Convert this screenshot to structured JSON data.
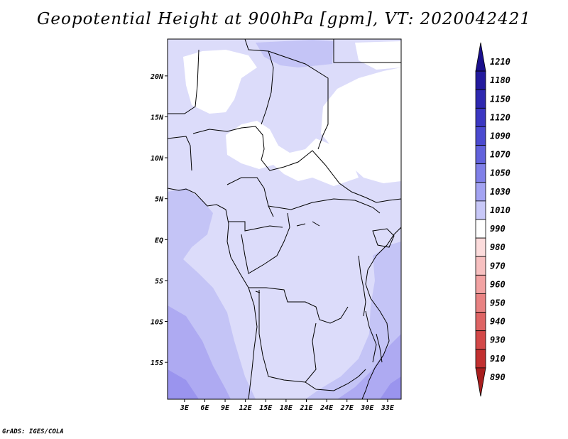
{
  "chart_data": {
    "type": "heatmap",
    "title": "Geopotential Height at 900hPa [gpm], VT: 2020042421",
    "variable": "Geopotential Height",
    "level": "900hPa",
    "units": "gpm",
    "valid_time": "2020042421",
    "x_ticks": [
      "3E",
      "6E",
      "9E",
      "12E",
      "15E",
      "18E",
      "21E",
      "24E",
      "27E",
      "30E",
      "33E"
    ],
    "x_tick_values": [
      3,
      6,
      9,
      12,
      15,
      18,
      21,
      24,
      27,
      30,
      33
    ],
    "y_ticks": [
      "20N",
      "15N",
      "10N",
      "5N",
      "EQ",
      "5S",
      "10S",
      "15S"
    ],
    "y_tick_values": [
      20,
      15,
      10,
      5,
      0,
      -5,
      -10,
      -15
    ],
    "lon_range": [
      0.5,
      35
    ],
    "lat_range": [
      -19.5,
      24.5
    ],
    "colorbar": {
      "orientation": "vertical",
      "levels": [
        1210,
        1180,
        1150,
        1120,
        1090,
        1070,
        1050,
        1030,
        1010,
        990,
        980,
        970,
        960,
        950,
        940,
        930,
        910,
        890
      ],
      "colors": [
        "#1a0f8c",
        "#231a9e",
        "#2e28b0",
        "#3b37c2",
        "#4b4ad0",
        "#6262dc",
        "#8080e8",
        "#a3a3f2",
        "#c8c8f8",
        "#ffffff",
        "#fcdcdc",
        "#f7c0c0",
        "#f2a2a2",
        "#e88282",
        "#de6464",
        "#d34848",
        "#c23030",
        "#a81e1e"
      ]
    },
    "regions": [
      {
        "name": "white",
        "value_range": [
          1010,
          1030
        ],
        "color": "#ffffff"
      },
      {
        "name": "pale-lavender",
        "value_range": [
          1030,
          1050
        ],
        "color": "#dcdcfa"
      },
      {
        "name": "light-lavender",
        "value_range": [
          1050,
          1070
        ],
        "color": "#c4c4f6"
      },
      {
        "name": "medium-lavender",
        "value_range": [
          1070,
          1090
        ],
        "color": "#aeaaf2"
      },
      {
        "name": "deep-lavender",
        "value_range": [
          1090,
          1120
        ],
        "color": "#9a94ee"
      }
    ]
  },
  "credit": "GrADS: IGES/COLA"
}
